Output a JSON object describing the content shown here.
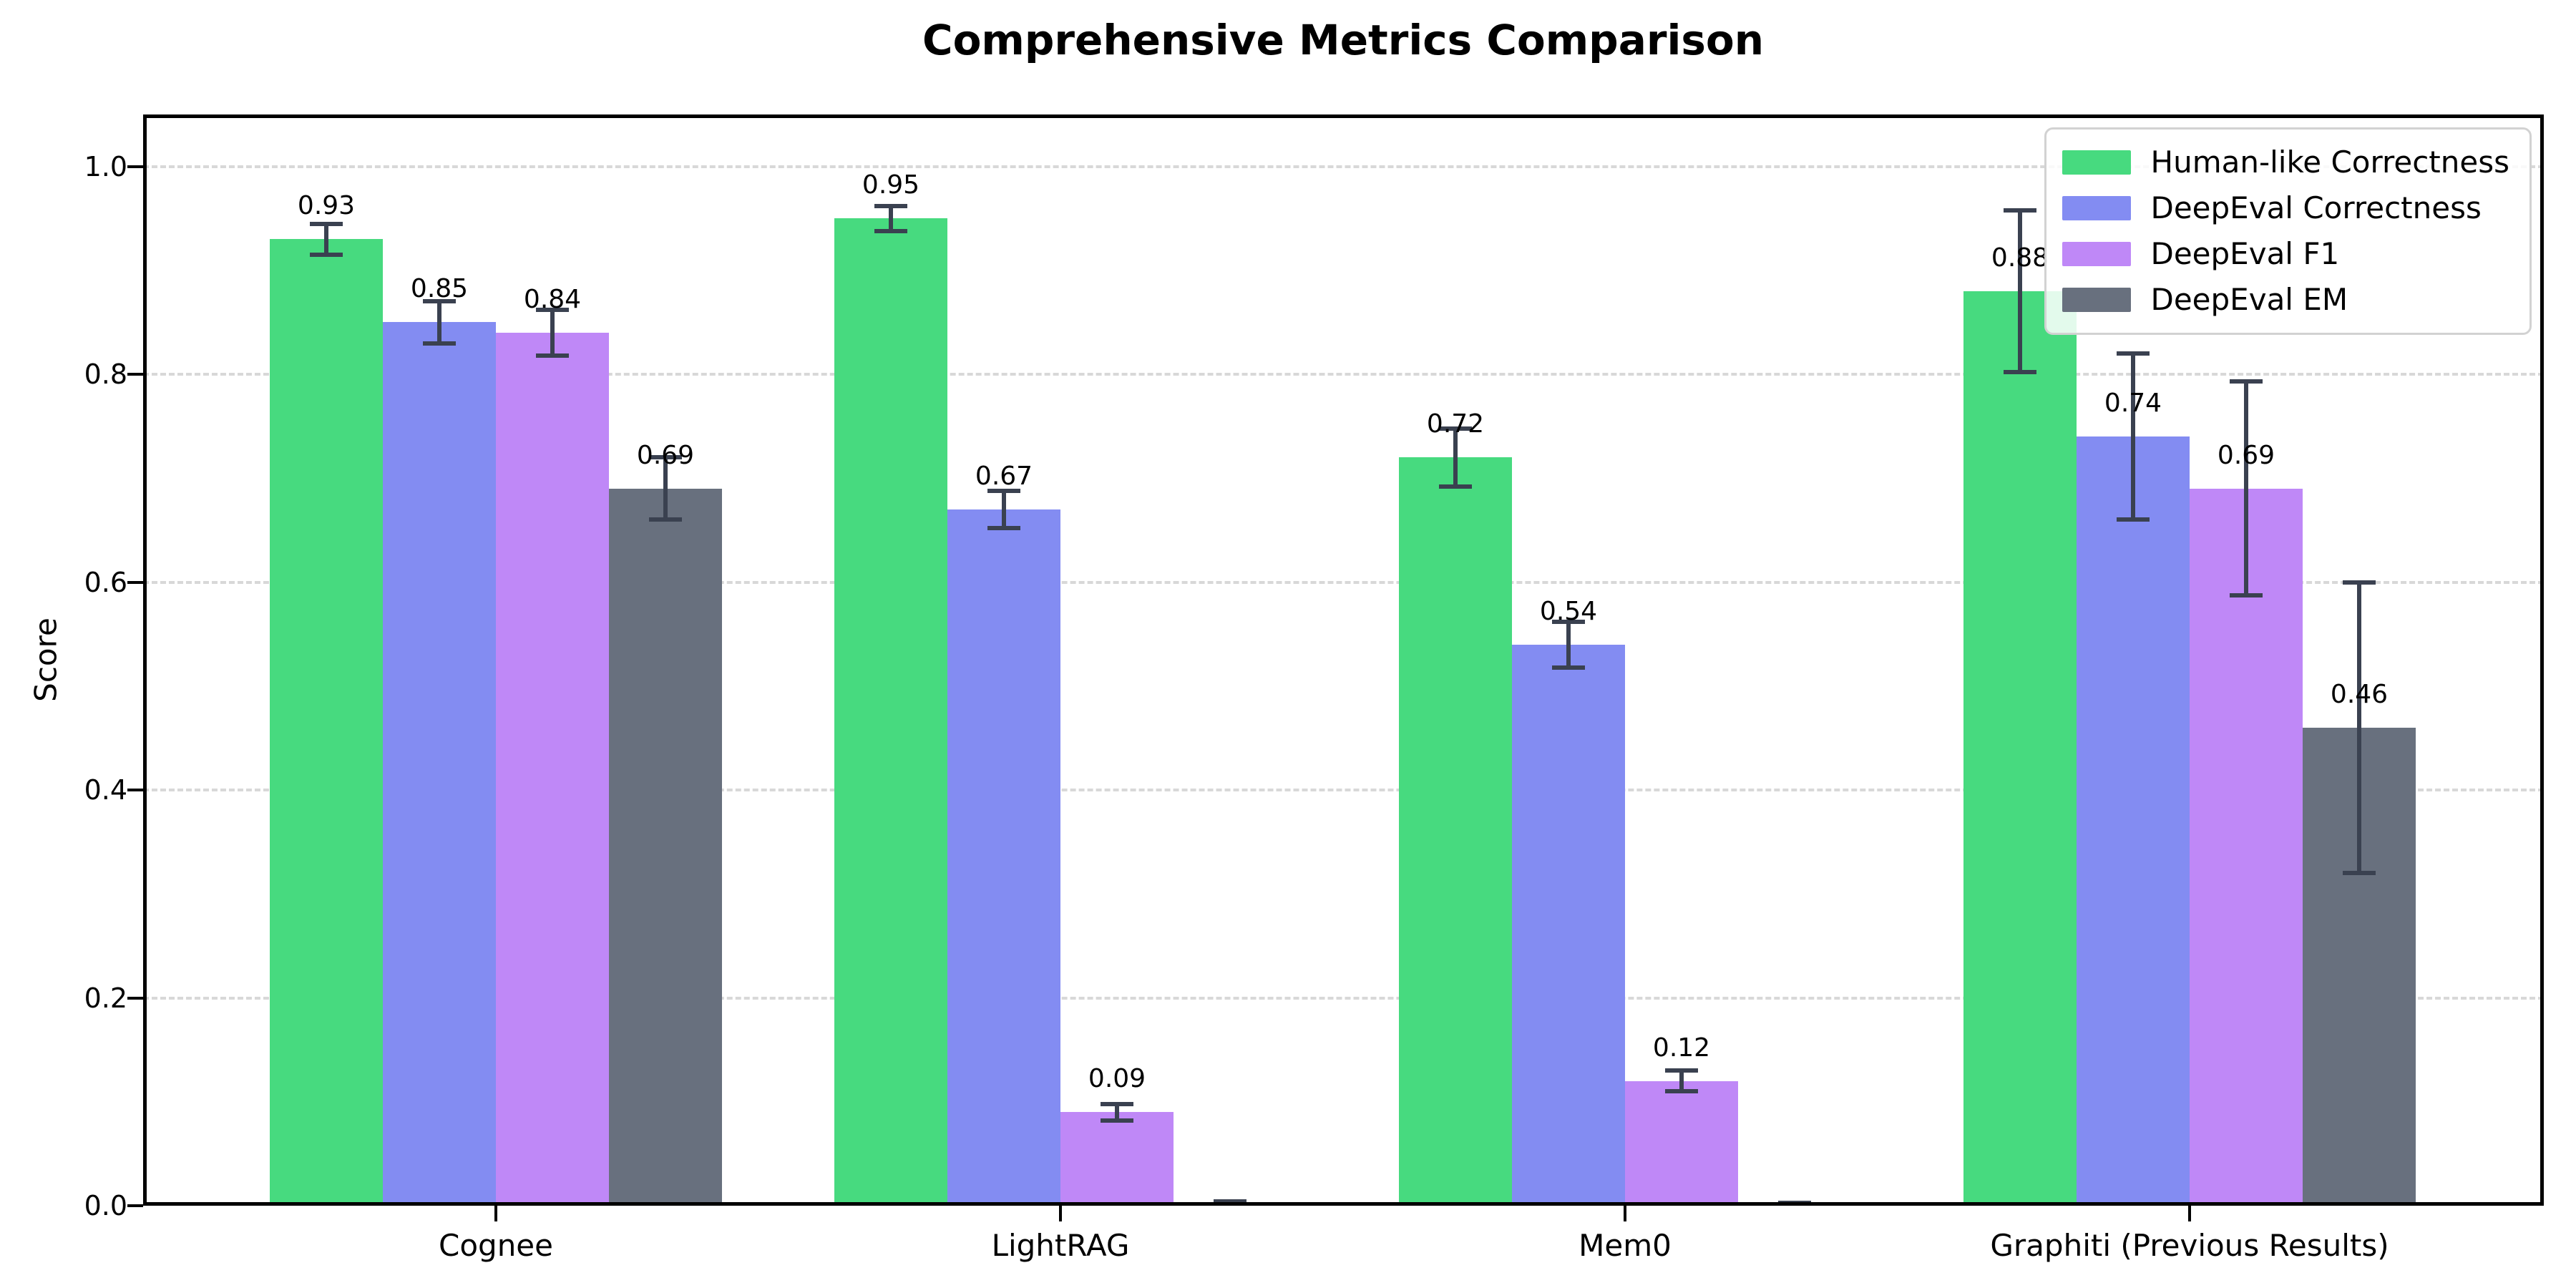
{
  "chart_data": {
    "type": "bar",
    "title": "Comprehensive Metrics Comparison",
    "ylabel": "Score",
    "xlabel": "",
    "categories": [
      "Cognee",
      "LightRAG",
      "Mem0",
      "Graphiti (Previous Results)"
    ],
    "series": [
      {
        "name": "Human-like Correctness",
        "color": "#47da7f",
        "values": [
          0.93,
          0.95,
          0.72,
          0.88
        ],
        "errors": [
          0.015,
          0.012,
          0.028,
          0.078
        ],
        "labels": [
          "0.93",
          "0.95",
          "0.72",
          "0.88"
        ]
      },
      {
        "name": "DeepEval Correctness",
        "color": "#838cf2",
        "values": [
          0.85,
          0.67,
          0.54,
          0.74
        ],
        "errors": [
          0.02,
          0.018,
          0.022,
          0.08
        ],
        "labels": [
          "0.85",
          "0.67",
          "0.54",
          "0.74"
        ]
      },
      {
        "name": "DeepEval F1",
        "color": "#bf88f7",
        "values": [
          0.84,
          0.09,
          0.12,
          0.69
        ],
        "errors": [
          0.022,
          0.008,
          0.01,
          0.103
        ],
        "labels": [
          "0.84",
          "0.09",
          "0.12",
          "0.69"
        ]
      },
      {
        "name": "DeepEval EM",
        "color": "#68707e",
        "values": [
          0.69,
          0.0,
          0.0,
          0.46
        ],
        "errors": [
          0.03,
          0.004,
          0.003,
          0.14
        ],
        "labels": [
          "0.69",
          "",
          "",
          "0.46"
        ]
      }
    ],
    "yticks": [
      0.0,
      0.2,
      0.4,
      0.6,
      0.8,
      1.0
    ],
    "ytick_labels": [
      "0.0",
      "0.2",
      "0.4",
      "0.6",
      "0.8",
      "1.0"
    ],
    "ylim": [
      0,
      1.05
    ],
    "grid": "horizontal-dashed",
    "grid_color": "#d8d8d8",
    "error_bar_color": "#3a4150",
    "legend_position": "upper-right"
  }
}
